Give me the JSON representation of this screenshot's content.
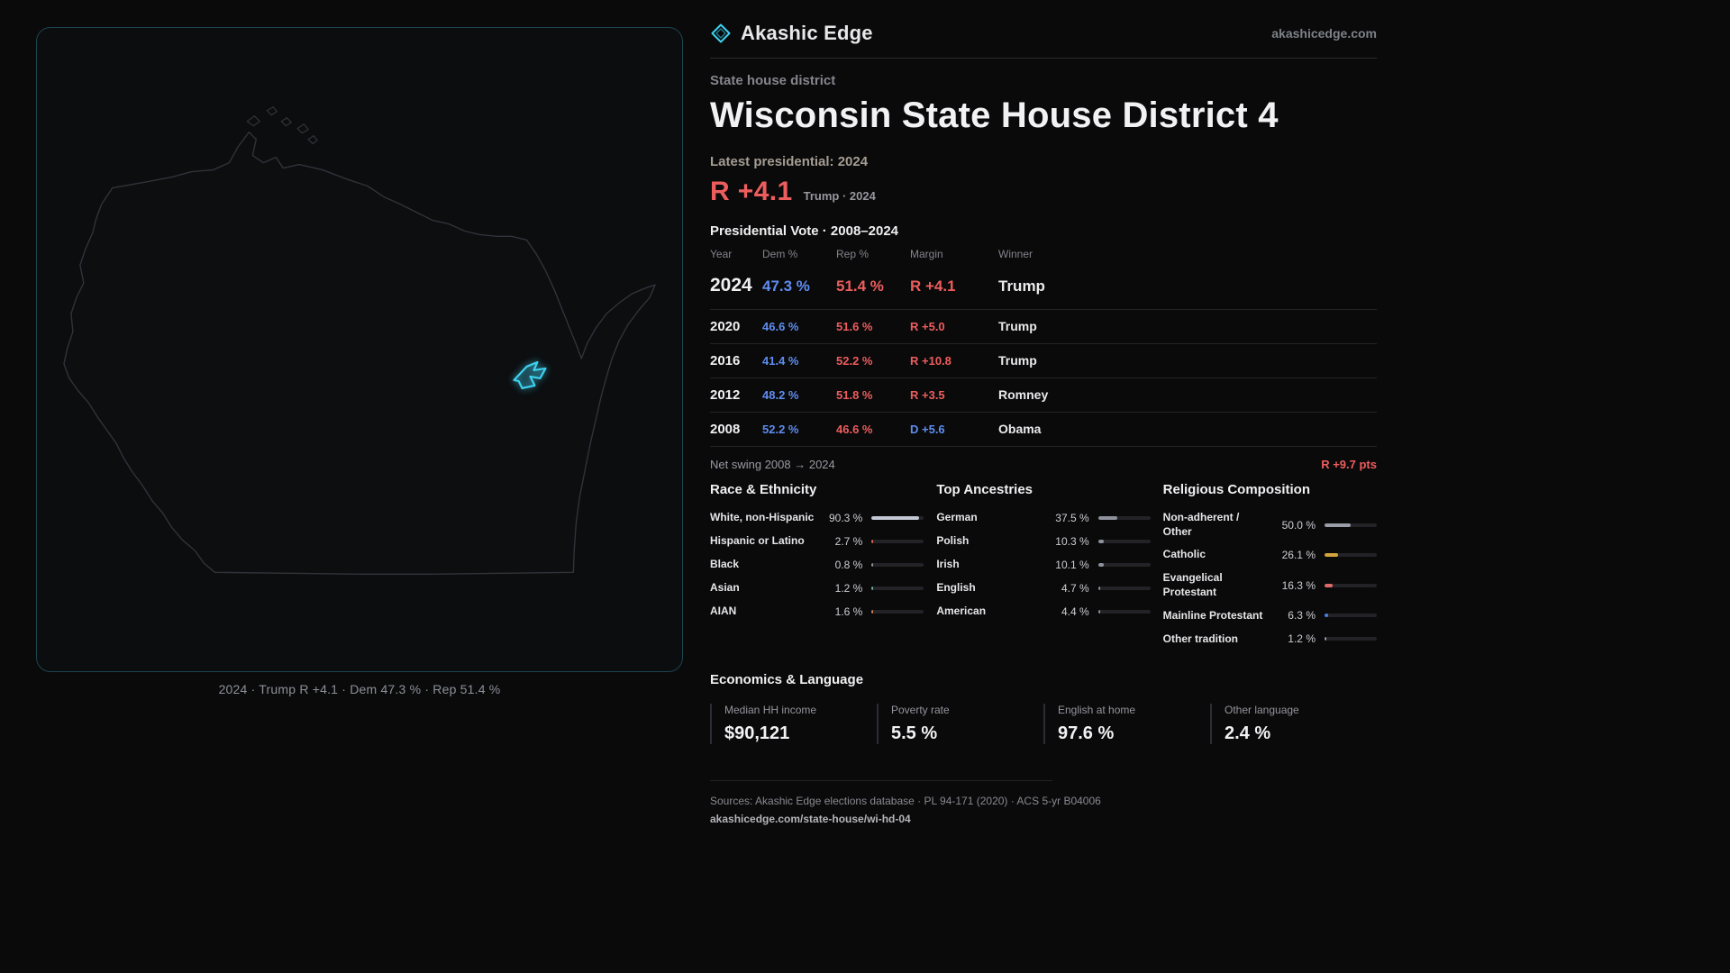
{
  "colors": {
    "accent_cyan": "#3ed0ee",
    "dem_blue": "#5f8df0",
    "rep_red": "#ee5d5d",
    "background": "#0a0a0b"
  },
  "header": {
    "brand": "Akashic Edge",
    "site": "akashicedge.com"
  },
  "map": {
    "caption": "2024 · Trump R +4.1 · Dem 47.3 % · Rep 51.4 %"
  },
  "district": {
    "kicker": "State house district",
    "title": "Wisconsin State House District 4",
    "latest_label": "Latest presidential: 2024",
    "margin_big": "R +4.1",
    "margin_sub": "Trump · 2024"
  },
  "vote_table": {
    "title": "Presidential Vote · 2008–2024",
    "columns": [
      "Year",
      "Dem %",
      "Rep %",
      "Margin",
      "Winner"
    ],
    "rows": [
      {
        "year": "2024",
        "dem": "47.3 %",
        "rep": "51.4 %",
        "margin": "R +4.1",
        "margin_party": "R",
        "winner": "Trump"
      },
      {
        "year": "2020",
        "dem": "46.6 %",
        "rep": "51.6 %",
        "margin": "R +5.0",
        "margin_party": "R",
        "winner": "Trump"
      },
      {
        "year": "2016",
        "dem": "41.4 %",
        "rep": "52.2 %",
        "margin": "R +10.8",
        "margin_party": "R",
        "winner": "Trump"
      },
      {
        "year": "2012",
        "dem": "48.2 %",
        "rep": "51.8 %",
        "margin": "R +3.5",
        "margin_party": "R",
        "winner": "Romney"
      },
      {
        "year": "2008",
        "dem": "52.2 %",
        "rep": "46.6 %",
        "margin": "D +5.6",
        "margin_party": "D",
        "winner": "Obama"
      }
    ],
    "net_swing_label": "Net swing 2008 → 2024",
    "net_swing_value": "R +9.7 pts"
  },
  "demographics": [
    {
      "title": "Race & Ethnicity",
      "rows": [
        {
          "label": "White, non-Hispanic",
          "value": "90.3 %",
          "pct": 90.3,
          "color": "#c4c7d4"
        },
        {
          "label": "Hispanic or Latino",
          "value": "2.7 %",
          "pct": 2.7,
          "color": "#e0694c"
        },
        {
          "label": "Black",
          "value": "0.8 %",
          "pct": 0.8,
          "color": "#8f949c"
        },
        {
          "label": "Asian",
          "value": "1.2 %",
          "pct": 1.2,
          "color": "#6fae9c"
        },
        {
          "label": "AIAN",
          "value": "1.6 %",
          "pct": 1.6,
          "color": "#d2844e"
        }
      ]
    },
    {
      "title": "Top Ancestries",
      "rows": [
        {
          "label": "German",
          "value": "37.5 %",
          "pct": 37.5,
          "color": "#8e929c"
        },
        {
          "label": "Polish",
          "value": "10.3 %",
          "pct": 10.3,
          "color": "#8e929c"
        },
        {
          "label": "Irish",
          "value": "10.1 %",
          "pct": 10.1,
          "color": "#8e929c"
        },
        {
          "label": "English",
          "value": "4.7 %",
          "pct": 4.7,
          "color": "#8e929c"
        },
        {
          "label": "American",
          "value": "4.4 %",
          "pct": 4.4,
          "color": "#8e929c"
        }
      ]
    },
    {
      "title": "Religious Composition",
      "rows": [
        {
          "label": "Non-adherent / Other",
          "value": "50.0 %",
          "pct": 50.0,
          "color": "#9a9ea8"
        },
        {
          "label": "Catholic",
          "value": "26.1 %",
          "pct": 26.1,
          "color": "#d4a43c"
        },
        {
          "label": "Evangelical Protestant",
          "value": "16.3 %",
          "pct": 16.3,
          "color": "#e06a6a"
        },
        {
          "label": "Mainline Protestant",
          "value": "6.3 %",
          "pct": 6.3,
          "color": "#4f7fe0"
        },
        {
          "label": "Other tradition",
          "value": "1.2 %",
          "pct": 1.2,
          "color": "#9a9ea8"
        }
      ]
    }
  ],
  "economics": {
    "title": "Economics & Language",
    "stats": [
      {
        "label": "Median HH income",
        "value": "$90,121"
      },
      {
        "label": "Poverty rate",
        "value": "5.5 %"
      },
      {
        "label": "English at home",
        "value": "97.6 %"
      },
      {
        "label": "Other language",
        "value": "2.4 %"
      }
    ]
  },
  "footer": {
    "sources": "Sources: Akashic Edge elections database · PL 94-171 (2020) · ACS 5-yr B04006",
    "link": "akashicedge.com/state-house/wi-hd-04"
  }
}
